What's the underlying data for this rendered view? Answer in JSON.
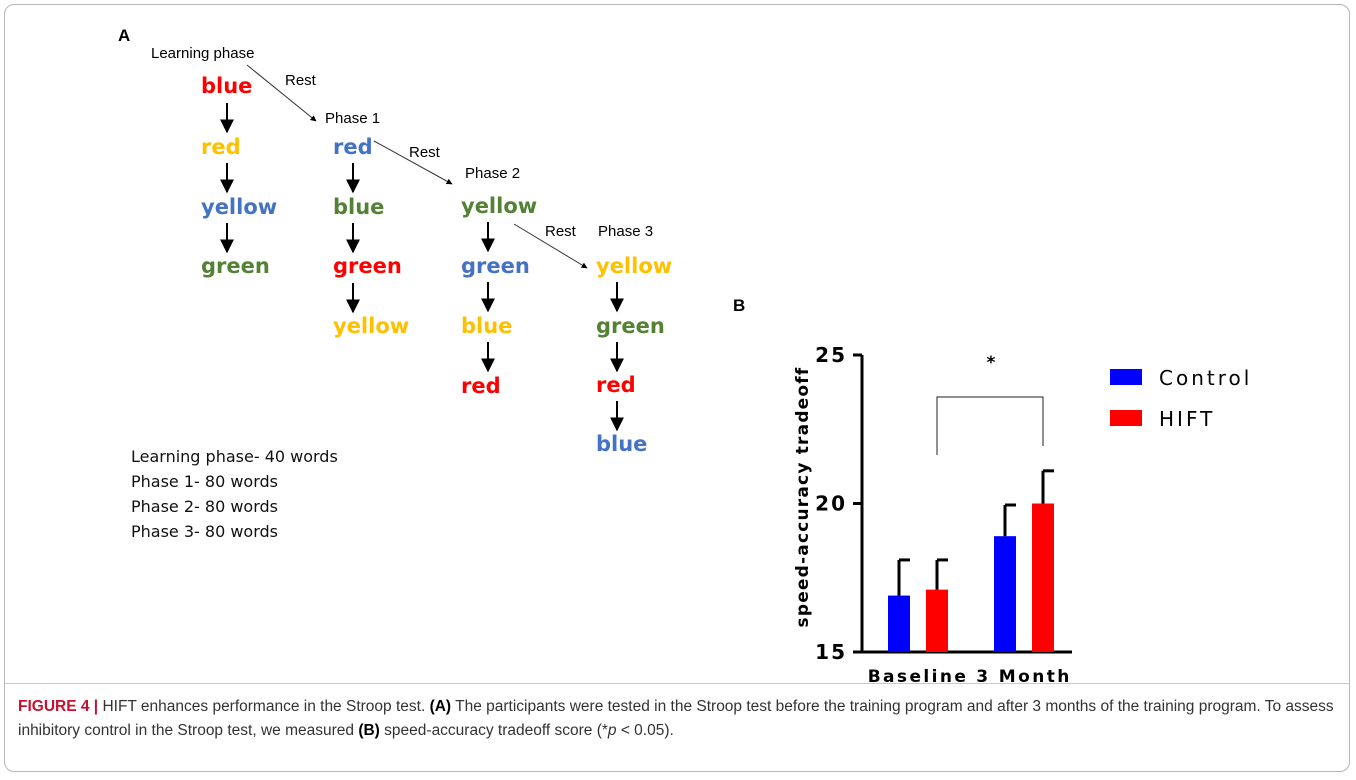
{
  "panel_a": {
    "letter": "A",
    "column_titles": [
      "Learning phase",
      "Phase 1",
      "Phase 2",
      "Phase 3"
    ],
    "rest_label": "Rest",
    "columns": [
      [
        {
          "word": "blue",
          "color": "#ff0000"
        },
        {
          "word": "red",
          "color": "#ffc000"
        },
        {
          "word": "yellow",
          "color": "#4472c4"
        },
        {
          "word": "green",
          "color": "#548235"
        }
      ],
      [
        {
          "word": "red",
          "color": "#4472c4"
        },
        {
          "word": "blue",
          "color": "#548235"
        },
        {
          "word": "green",
          "color": "#ff0000"
        },
        {
          "word": "yellow",
          "color": "#ffc000"
        }
      ],
      [
        {
          "word": "yellow",
          "color": "#548235"
        },
        {
          "word": "green",
          "color": "#4472c4"
        },
        {
          "word": "blue",
          "color": "#ffc000"
        },
        {
          "word": "red",
          "color": "#ff0000"
        }
      ],
      [
        {
          "word": "yellow",
          "color": "#ffc000"
        },
        {
          "word": "green",
          "color": "#548235"
        },
        {
          "word": "red",
          "color": "#ff0000"
        },
        {
          "word": "blue",
          "color": "#4472c4"
        }
      ]
    ],
    "summary": [
      "Learning phase- 40 words",
      "Phase 1- 80 words",
      "Phase 2- 80 words",
      "Phase 3- 80 words"
    ]
  },
  "panel_b": {
    "letter": "B"
  },
  "chart_data": {
    "type": "bar",
    "categories": [
      "Baseline",
      "3 Month"
    ],
    "ylabel": "speed-accuracy tradeoff",
    "ylim": [
      15,
      25
    ],
    "yticks": [
      "15",
      "20",
      "25"
    ],
    "series": [
      {
        "name": "Control",
        "color": "#0000ff",
        "values": [
          16.9,
          18.9
        ],
        "errors": [
          1.2,
          1.05
        ]
      },
      {
        "name": "HIFT",
        "color": "#ff0000",
        "values": [
          17.1,
          20.0
        ],
        "errors": [
          1.0,
          1.1
        ]
      }
    ],
    "significance": {
      "label": "*",
      "from_category": 0,
      "to_category": 1
    },
    "legend_position": "top-right",
    "grid": false
  },
  "caption": {
    "figure_label": "FIGURE 4",
    "separator": "|",
    "title": "HIFT enhances performance in the Stroop test.",
    "part_a_label": "(A)",
    "part_a_text": "The participants were tested in the Stroop test before the training program and after 3 months of the training program. To assess inhibitory control in the Stroop test, we measured",
    "part_b_label": "(B)",
    "part_b_text_before": "speed-accuracy tradeoff score (*",
    "p_symbol": "p",
    "part_b_text_after": " < 0.05)."
  }
}
